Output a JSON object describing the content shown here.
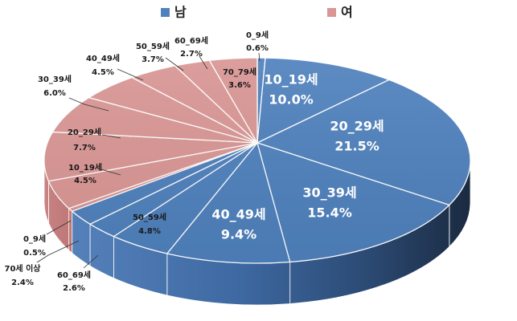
{
  "chart_data": {
    "type": "pie",
    "three_d": true,
    "legend_position": "top",
    "legend": [
      {
        "name": "남",
        "color": "#4f81bd"
      },
      {
        "name": "여",
        "color": "#d99694"
      }
    ],
    "slices": [
      {
        "group": "남",
        "label": "0_9세",
        "value": 0.6,
        "value_label": "0.6%"
      },
      {
        "group": "남",
        "label": "10_19세",
        "value": 10.0,
        "value_label": "10.0%"
      },
      {
        "group": "남",
        "label": "20_29세",
        "value": 21.5,
        "value_label": "21.5%"
      },
      {
        "group": "남",
        "label": "30_39세",
        "value": 15.4,
        "value_label": "15.4%"
      },
      {
        "group": "남",
        "label": "40_49세",
        "value": 9.4,
        "value_label": "9.4%"
      },
      {
        "group": "남",
        "label": "50_59세",
        "value": 4.8,
        "value_label": "4.8%"
      },
      {
        "group": "남",
        "label": "60_69세",
        "value": 2.6,
        "value_label": "2.6%"
      },
      {
        "group": "남",
        "label": "70세 이상",
        "value": 2.4,
        "value_label": "2.4%"
      },
      {
        "group": "여",
        "label": "0_9세",
        "value": 0.5,
        "value_label": "0.5%"
      },
      {
        "group": "여",
        "label": "10_19세",
        "value": 4.5,
        "value_label": "4.5%"
      },
      {
        "group": "여",
        "label": "20_29세",
        "value": 7.7,
        "value_label": "7.7%"
      },
      {
        "group": "여",
        "label": "30_39세",
        "value": 6.0,
        "value_label": "6.0%"
      },
      {
        "group": "여",
        "label": "40_49세",
        "value": 4.5,
        "value_label": "4.5%"
      },
      {
        "group": "여",
        "label": "50_59세",
        "value": 3.7,
        "value_label": "3.7%"
      },
      {
        "group": "여",
        "label": "60_69세",
        "value": 2.7,
        "value_label": "2.7%"
      },
      {
        "group": "여",
        "label": "70_79세",
        "value": 3.6,
        "value_label": "3.6%"
      }
    ]
  }
}
